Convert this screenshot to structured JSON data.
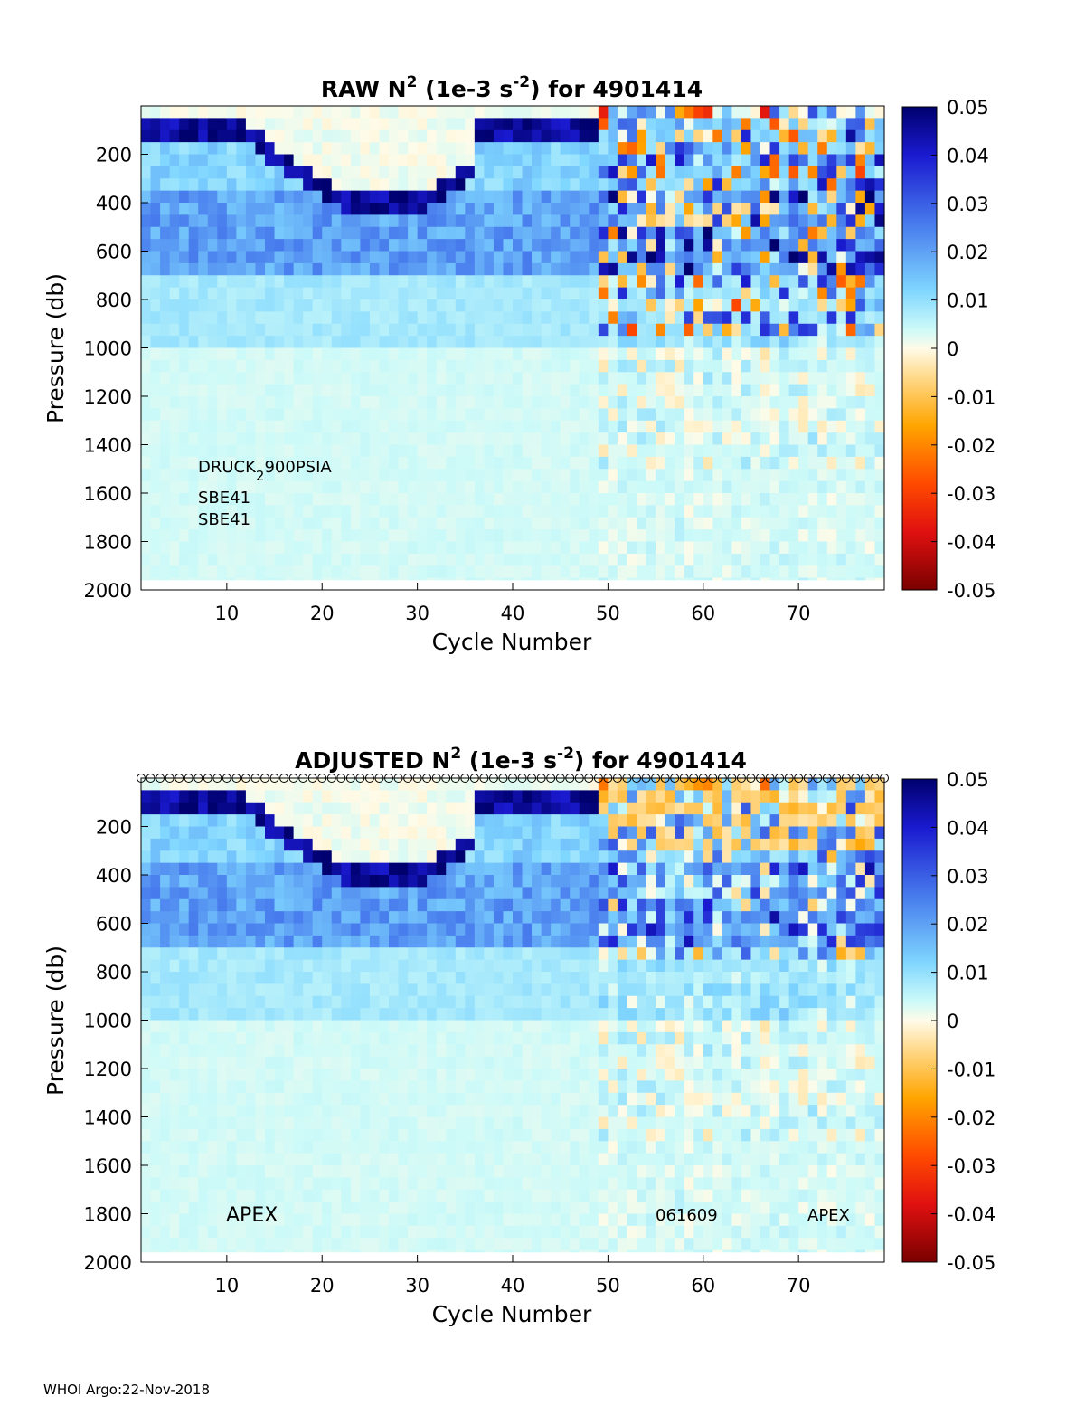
{
  "colormap": [
    "#7f0000",
    "#d7191c",
    "#ff4500",
    "#ffa500",
    "#ffd97a",
    "#fffbe6",
    "#dcfff0",
    "#9ff0ff",
    "#79cfff",
    "#4a7ef0",
    "#1414c8",
    "#000070"
  ],
  "chart_data": [
    {
      "type": "heatmap",
      "title": "RAW N² (1e-3 s⁻²) for 4901414",
      "title_main": "RAW N",
      "title_sup1": "2",
      "title_mid": " (1e-3 s",
      "title_sup2": "-2",
      "title_end": ") for 4901414",
      "xlabel": "Cycle Number",
      "ylabel": "Pressure (db)",
      "xlim": [
        1,
        79
      ],
      "ylim": [
        2000,
        0
      ],
      "x_ticks": [
        "10",
        "20",
        "30",
        "40",
        "50",
        "60",
        "70"
      ],
      "y_ticks": [
        "200",
        "400",
        "600",
        "800",
        "1000",
        "1200",
        "1400",
        "1600",
        "1800",
        "2000"
      ],
      "colorbar_ticks": [
        "0.05",
        "0.04",
        "0.03",
        "0.02",
        "0.01",
        "0",
        "-0.01",
        "-0.02",
        "-0.03",
        "-0.04",
        "-0.05"
      ],
      "clim": [
        -0.05,
        0.05
      ],
      "annotations": {
        "sensor_main": "DRUCK",
        "sensor_sub": "2",
        "sensor_rest": "900PSIA",
        "sbe1": "SBE41",
        "sbe2": "SBE41"
      },
      "x_cycles_start": 1,
      "x_cycles_end": 78,
      "y_levels_start": 0,
      "y_levels_end": 2000,
      "y_level_step": 50,
      "field_desc": "strong stratification 0-200db early cycles; mixed layer deepens to ~350db near cycles 15-30; noisy positive/negative values after cycle 49"
    },
    {
      "type": "heatmap",
      "title": "ADJUSTED N² (1e-3 s⁻²) for 4901414",
      "title_main": "ADJUSTED N",
      "title_sup1": "2",
      "title_mid": " (1e-3 s",
      "title_sup2": "-2",
      "title_end": ") for 4901414",
      "xlabel": "Cycle Number",
      "ylabel": "Pressure (db)",
      "xlim": [
        1,
        79
      ],
      "ylim": [
        2000,
        0
      ],
      "x_ticks": [
        "10",
        "20",
        "30",
        "40",
        "50",
        "60",
        "70"
      ],
      "y_ticks": [
        "200",
        "400",
        "600",
        "800",
        "1000",
        "1200",
        "1400",
        "1600",
        "1800",
        "2000"
      ],
      "colorbar_ticks": [
        "0.05",
        "0.04",
        "0.03",
        "0.02",
        "0.01",
        "0",
        "-0.01",
        "-0.02",
        "-0.03",
        "-0.04",
        "-0.05"
      ],
      "clim": [
        -0.05,
        0.05
      ],
      "annotations": {
        "left": "APEX",
        "mid": "061609",
        "right": "APEX"
      },
      "surface_marker": "o",
      "x_cycles_start": 1,
      "x_cycles_end": 78,
      "y_levels_start": 0,
      "y_levels_end": 2000,
      "y_level_step": 50
    }
  ],
  "footer": "WHOI Argo:22-Nov-2018"
}
